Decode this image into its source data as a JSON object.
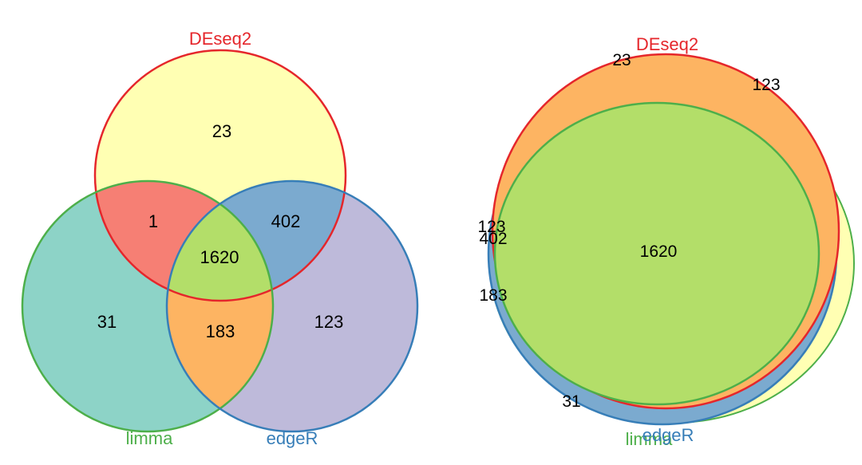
{
  "left_diagram": {
    "sets": {
      "deseq2": {
        "label": "DEseq2",
        "color": "#E5262B"
      },
      "limma": {
        "label": "limma",
        "color": "#4DAF4A"
      },
      "edger": {
        "label": "edgeR",
        "color": "#377EB8"
      }
    },
    "regions": {
      "deseq2_only": "23",
      "deseq2_limma": "1",
      "deseq2_edger": "402",
      "all_three": "1620",
      "limma_only": "31",
      "limma_edger": "183",
      "edger_only": "123"
    },
    "fills": {
      "deseq2_only": "#FFFFB3",
      "deseq2_limma": "#F67F74",
      "deseq2_edger": "#7BAACF",
      "all_three": "#B3DE69",
      "limma_only": "#8DD3C7",
      "limma_edger": "#FDB462",
      "edger_only": "#BEBADA"
    }
  },
  "right_diagram": {
    "labels": {
      "deseq2": "DEseq2",
      "limma": "limma",
      "edger": "edgeR"
    },
    "numbers": {
      "deseq2_only": "23",
      "edger_only_top": "123",
      "left_123": "123",
      "left_402": "402",
      "left_183": "183",
      "center": "1620",
      "bottom_31": "31"
    }
  }
}
